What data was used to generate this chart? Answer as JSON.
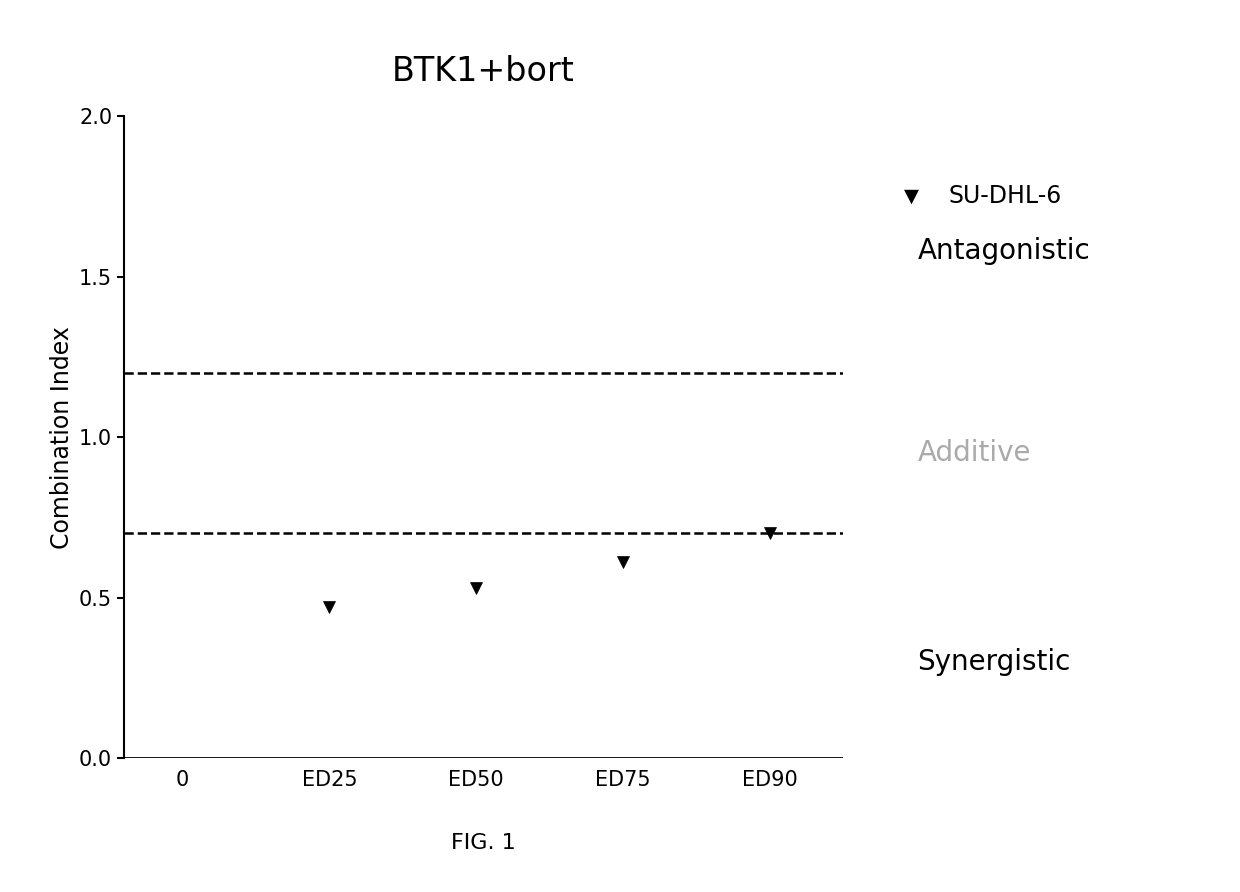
{
  "title": "BTK1+bort",
  "xlabel": "",
  "ylabel": "Combination Index",
  "fig_caption": "FIG. 1",
  "x_categories": [
    "0",
    "ED25",
    "ED50",
    "ED75",
    "ED90"
  ],
  "x_positions": [
    0,
    1,
    2,
    3,
    4
  ],
  "data_series": [
    {
      "label": "SU-DHL-6",
      "x": [
        1,
        2,
        3,
        4
      ],
      "y": [
        0.47,
        0.53,
        0.61,
        0.7
      ],
      "color": "#000000",
      "marker": "v",
      "markersize": 9
    }
  ],
  "hline_upper": 1.2,
  "hline_lower": 0.7,
  "ylim": [
    0.0,
    2.0
  ],
  "yticks": [
    0.0,
    0.5,
    1.0,
    1.5,
    2.0
  ],
  "xlim": [
    -0.4,
    4.5
  ],
  "background_color": "#ffffff",
  "annotation_antagonistic": "Antagonistic",
  "annotation_additive": "Additive",
  "annotation_synergistic": "Synergistic",
  "annotation_additive_color": "#aaaaaa",
  "annotation_black_color": "#000000",
  "title_fontsize": 24,
  "ylabel_fontsize": 17,
  "tick_fontsize": 15,
  "legend_fontsize": 17,
  "annotation_fontsize": 20,
  "caption_fontsize": 16
}
